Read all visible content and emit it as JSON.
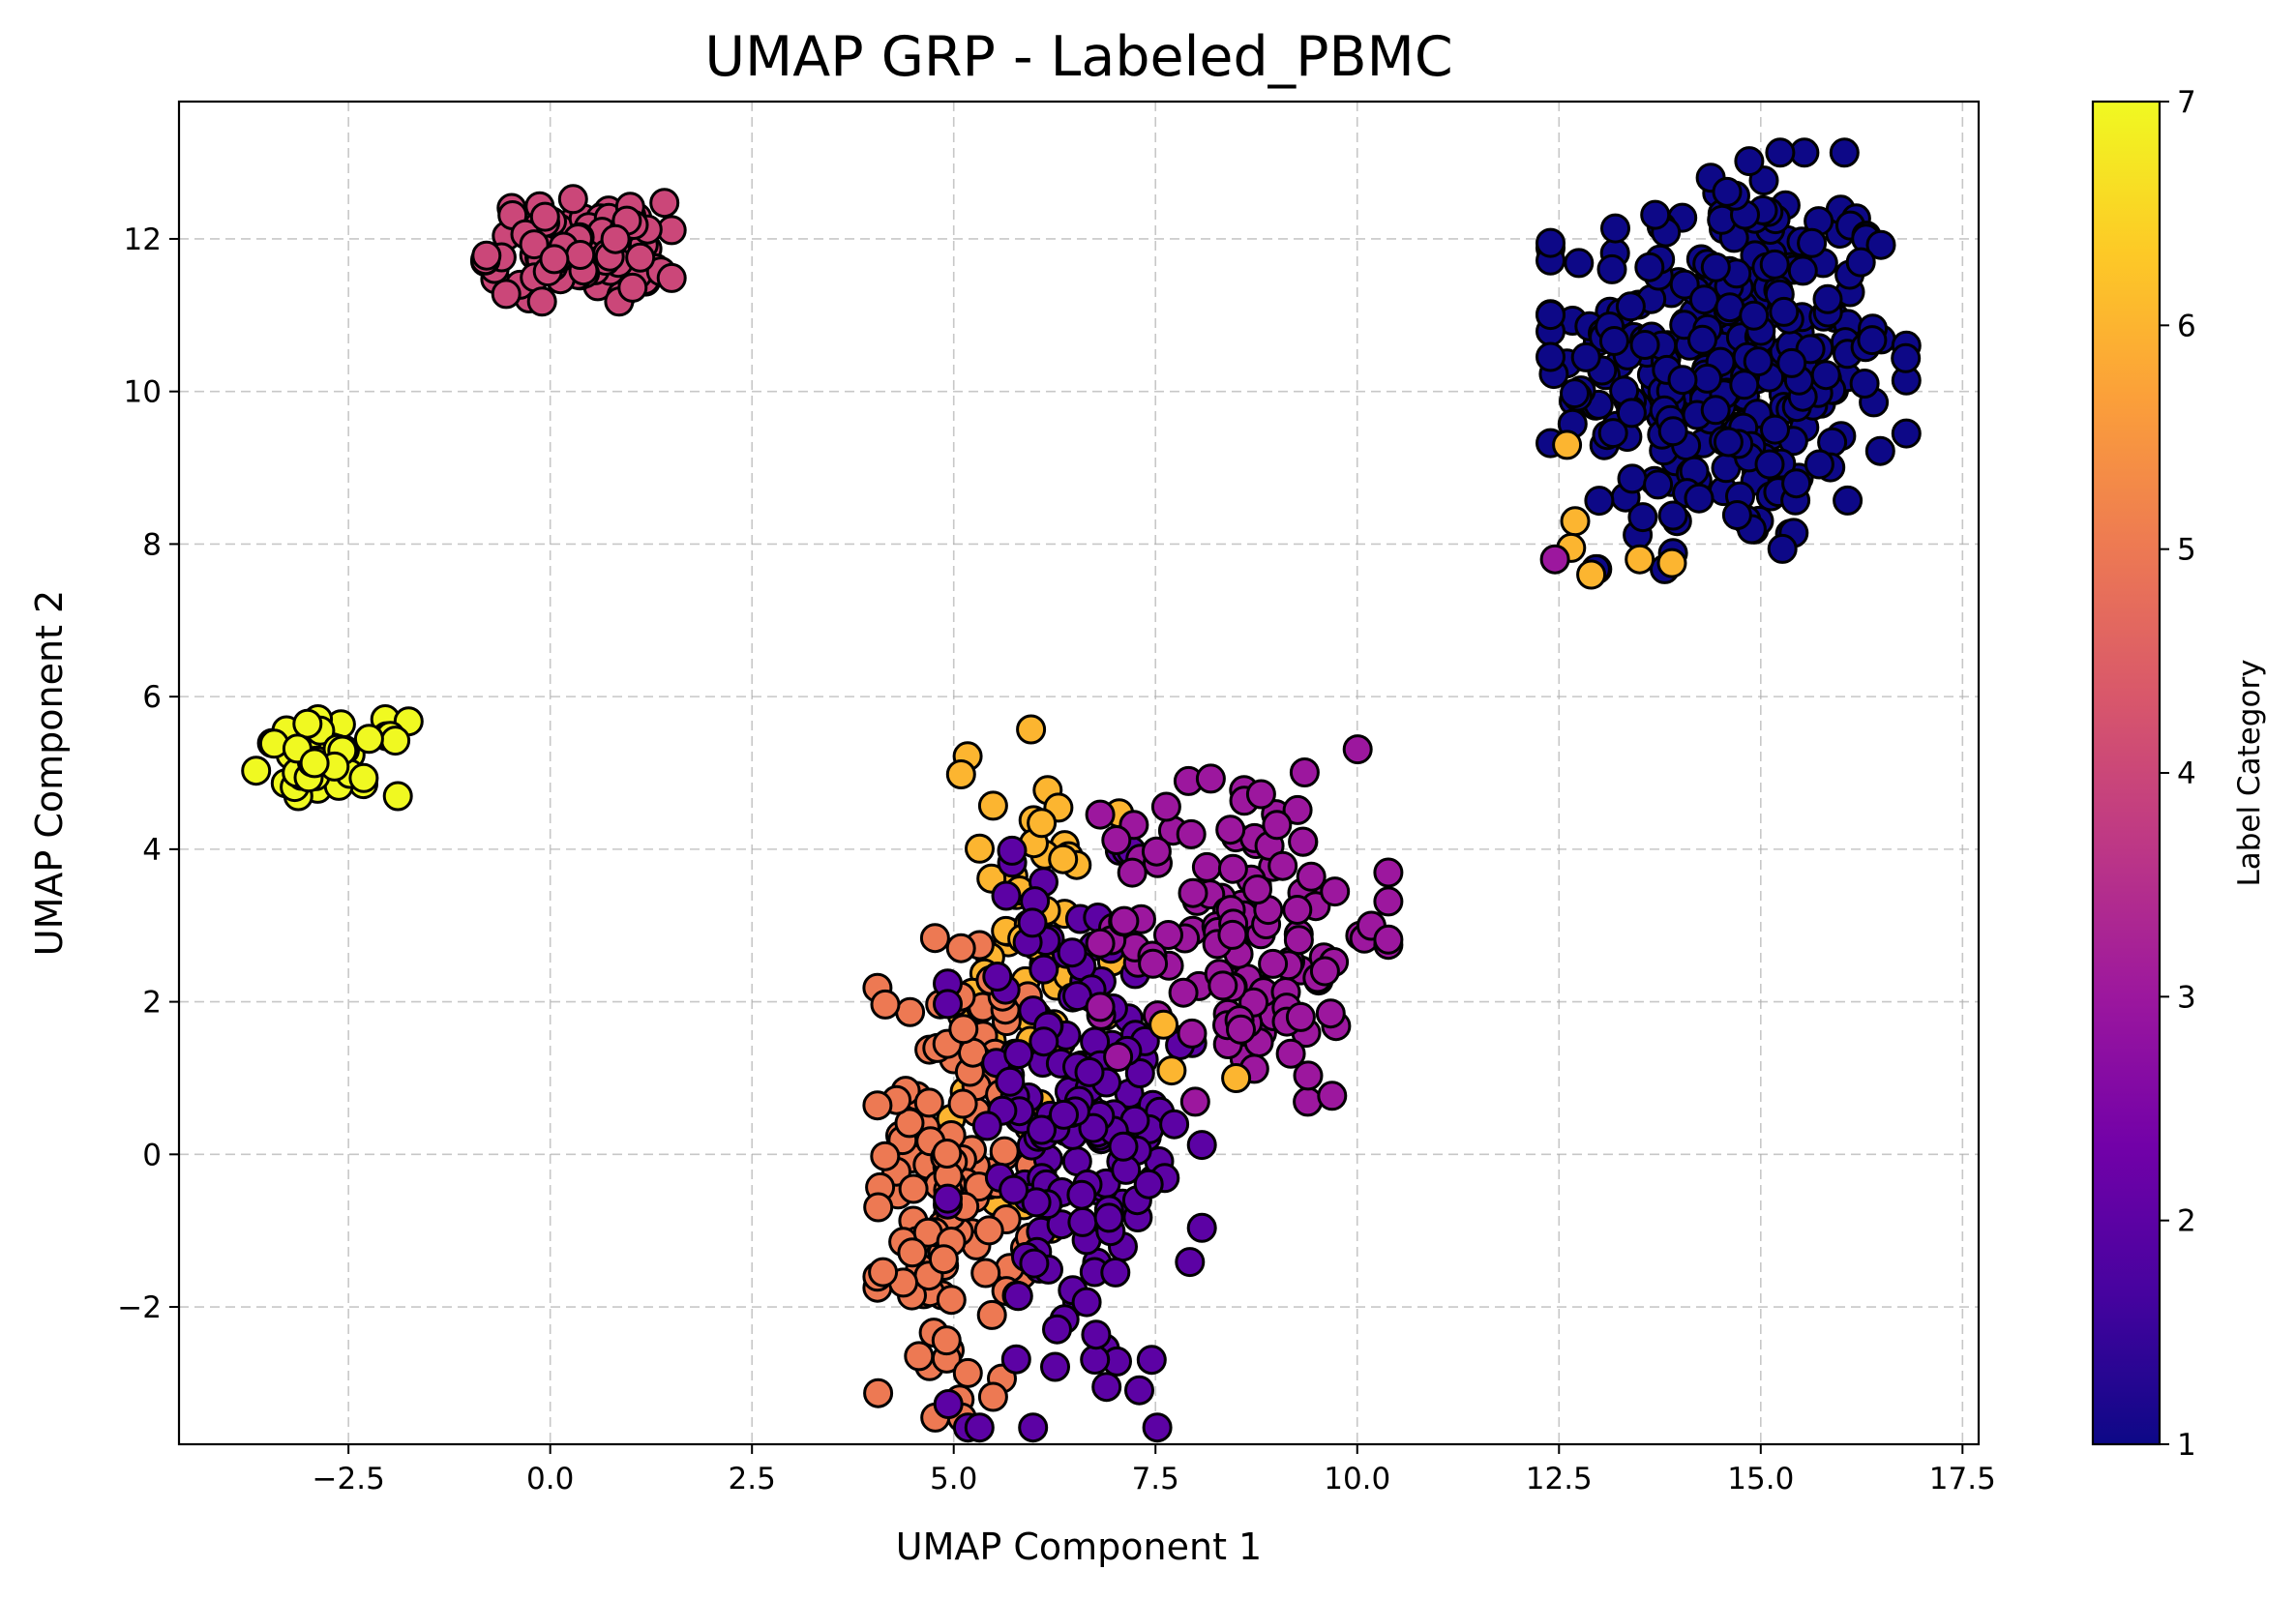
{
  "chart_data": {
    "type": "scatter",
    "title": "UMAP GRP - Labeled_PBMC",
    "xlabel": "UMAP Component 1",
    "ylabel": "UMAP Component 2",
    "xlim": [
      -4.6,
      17.7
    ],
    "ylim": [
      -3.8,
      13.8
    ],
    "x_ticks": [
      -2.5,
      0.0,
      2.5,
      5.0,
      7.5,
      10.0,
      12.5,
      15.0,
      17.5
    ],
    "x_tick_labels": [
      "−2.5",
      "0.0",
      "2.5",
      "5.0",
      "7.5",
      "10.0",
      "12.5",
      "15.0",
      "17.5"
    ],
    "y_ticks": [
      -2,
      0,
      2,
      4,
      6,
      8,
      10,
      12
    ],
    "y_tick_labels": [
      "−2",
      "0",
      "2",
      "4",
      "6",
      "8",
      "10",
      "12"
    ],
    "grid": true,
    "colormap": "plasma",
    "marker_edge_color": "#000000",
    "colorbar": {
      "label": "Label Category",
      "range": [
        1,
        7
      ],
      "ticks": [
        1,
        2,
        3,
        4,
        5,
        6,
        7
      ],
      "tick_labels": [
        "1",
        "2",
        "3",
        "4",
        "5",
        "6",
        "7"
      ],
      "colors": [
        "#0d0887",
        "#46039f",
        "#7201a8",
        "#9c179e",
        "#bd3786",
        "#d8576b",
        "#ed7953",
        "#fb9f3a",
        "#fdca26",
        "#f0f921"
      ]
    },
    "clusters": [
      {
        "label": 1,
        "center": [
          14.6,
          10.4
        ],
        "spread": [
          1.05,
          1.3
        ],
        "n": 320
      },
      {
        "label": 4,
        "center": [
          0.35,
          11.85
        ],
        "spread": [
          0.55,
          0.32
        ],
        "n": 110
      },
      {
        "label": 7,
        "center": [
          -2.7,
          5.2
        ],
        "spread": [
          0.45,
          0.24
        ],
        "n": 45
      },
      {
        "label": 6,
        "center": [
          6.0,
          2.2
        ],
        "spread": [
          0.5,
          1.7
        ],
        "n": 70
      },
      {
        "label": 5,
        "center": [
          5.0,
          -0.3
        ],
        "spread": [
          0.45,
          1.5
        ],
        "n": 130
      },
      {
        "label": 2,
        "center": [
          6.5,
          0.2
        ],
        "spread": [
          0.75,
          1.8
        ],
        "n": 170
      },
      {
        "label": 3,
        "center": [
          8.6,
          3.0
        ],
        "spread": [
          0.85,
          1.1
        ],
        "n": 130
      }
    ],
    "outliers": [
      {
        "label": 6,
        "x": 12.7,
        "y": 8.3
      },
      {
        "label": 6,
        "x": 12.65,
        "y": 7.95
      },
      {
        "label": 6,
        "x": 12.9,
        "y": 7.6
      },
      {
        "label": 6,
        "x": 13.5,
        "y": 7.8
      },
      {
        "label": 6,
        "x": 13.9,
        "y": 7.75
      },
      {
        "label": 6,
        "x": 12.6,
        "y": 9.3
      },
      {
        "label": 3,
        "x": 12.45,
        "y": 7.8
      },
      {
        "label": 6,
        "x": 7.6,
        "y": 1.7
      },
      {
        "label": 6,
        "x": 7.7,
        "y": 1.1
      },
      {
        "label": 6,
        "x": 8.5,
        "y": 1.0
      },
      {
        "label": 3,
        "x": 9.6,
        "y": 2.4
      },
      {
        "label": 3,
        "x": 9.3,
        "y": 1.8
      }
    ]
  }
}
